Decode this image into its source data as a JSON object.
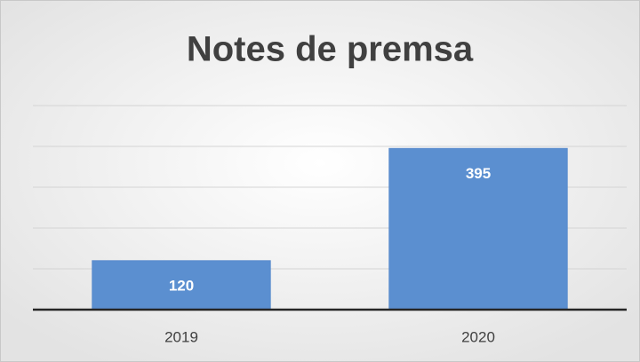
{
  "chart_data": {
    "type": "bar",
    "title": "Notes de premsa",
    "categories": [
      "2019",
      "2020"
    ],
    "values": [
      120,
      395
    ],
    "color": "#5b8fd0",
    "ylim": [
      0,
      500
    ],
    "yticks": [
      0,
      100,
      200,
      300,
      400,
      500
    ],
    "grid": true
  }
}
